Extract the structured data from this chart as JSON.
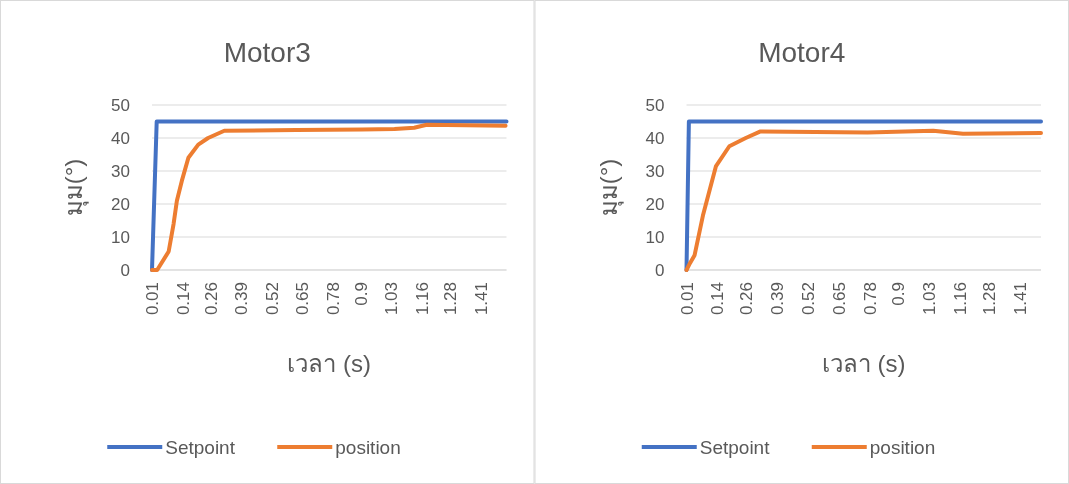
{
  "chart_data": [
    {
      "type": "line",
      "title": "Motor3",
      "xlabel": "เวลา (s)",
      "ylabel": "มุม(°)",
      "xlim": [
        0.01,
        1.52
      ],
      "ylim": [
        0,
        50
      ],
      "yticks": [
        0,
        10,
        20,
        30,
        40,
        50
      ],
      "xticks": [
        0.01,
        0.14,
        0.26,
        0.39,
        0.52,
        0.65,
        0.78,
        0.9,
        1.03,
        1.16,
        1.28,
        1.41
      ],
      "grid": "y",
      "legend": "bottom",
      "series": [
        {
          "name": "Setpoint",
          "color": "#4472c4",
          "x": [
            0.01,
            0.03,
            1.52
          ],
          "values": [
            0,
            45,
            45
          ]
        },
        {
          "name": "position",
          "color": "#ed7d31",
          "x": [
            0.01,
            0.032,
            0.081,
            0.102,
            0.116,
            0.137,
            0.165,
            0.207,
            0.249,
            0.318,
            0.625,
            0.904,
            1.043,
            1.127,
            1.18,
            1.516
          ],
          "values": [
            0,
            0,
            5.6,
            14,
            21,
            27,
            34,
            38,
            40,
            42.2,
            42.4,
            42.6,
            42.7,
            43.1,
            44,
            43.7
          ]
        }
      ]
    },
    {
      "type": "line",
      "title": "Motor4",
      "xlabel": "เวลา (s)",
      "ylabel": "มุม(°)",
      "xlim": [
        0.01,
        1.5
      ],
      "ylim": [
        0,
        50
      ],
      "yticks": [
        0,
        10,
        20,
        30,
        40,
        50
      ],
      "xticks": [
        0.01,
        0.14,
        0.26,
        0.39,
        0.52,
        0.65,
        0.78,
        0.9,
        1.03,
        1.16,
        1.28,
        1.41
      ],
      "grid": "y",
      "legend": "bottom",
      "series": [
        {
          "name": "Setpoint",
          "color": "#4472c4",
          "x": [
            0.01,
            0.02,
            1.5
          ],
          "values": [
            0,
            45,
            45
          ]
        },
        {
          "name": "position",
          "color": "#ed7d31",
          "x": [
            0.01,
            0.024,
            0.044,
            0.079,
            0.134,
            0.19,
            0.259,
            0.321,
            0.771,
            1.047,
            1.172,
            1.5
          ],
          "values": [
            0,
            2,
            4.5,
            16.5,
            31.5,
            37.5,
            40,
            42,
            41.7,
            42.2,
            41.3,
            41.5
          ]
        }
      ]
    }
  ]
}
